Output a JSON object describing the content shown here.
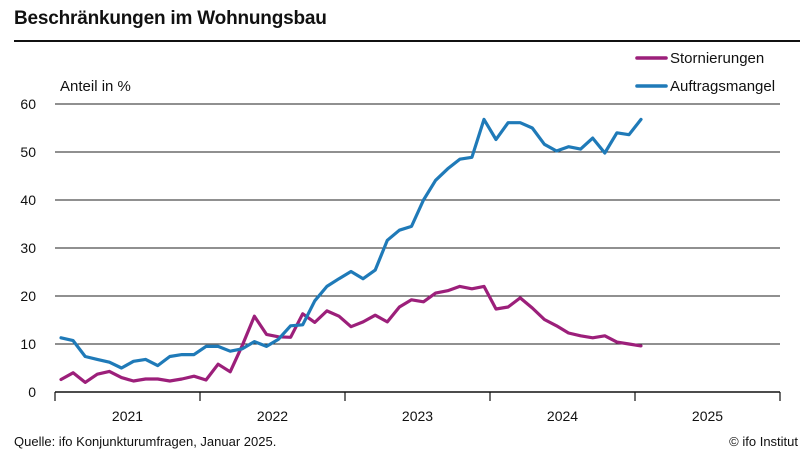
{
  "chart_data": {
    "type": "line",
    "title": "Beschränkungen im Wohnungsbau",
    "ylabel": "Anteil in %",
    "xlabel": "",
    "ylim": [
      0,
      60
    ],
    "yticks": [
      0,
      10,
      20,
      30,
      40,
      50,
      60
    ],
    "year_labels": [
      "2021",
      "2022",
      "2023",
      "2024",
      "2025"
    ],
    "x_start": "2021-01",
    "legend_position": "top-right",
    "grid": "horizontal",
    "series": [
      {
        "name": "Stornierungen",
        "color": "#9c1f7a",
        "values": [
          2.6,
          4.0,
          2.0,
          3.7,
          4.3,
          3.0,
          2.3,
          2.7,
          2.7,
          2.3,
          2.7,
          3.3,
          2.5,
          5.8,
          4.2,
          9.7,
          15.8,
          12.0,
          11.5,
          11.4,
          16.3,
          14.5,
          16.9,
          15.8,
          13.6,
          14.6,
          16.0,
          14.6,
          17.7,
          19.2,
          18.8,
          20.6,
          21.1,
          22.0,
          21.5,
          22.0,
          17.3,
          17.7,
          19.6,
          17.5,
          15.1,
          13.8,
          12.3,
          11.7,
          11.3,
          11.7,
          10.4,
          10.0,
          9.6
        ]
      },
      {
        "name": "Auftragsmangel",
        "color": "#1f7ab8",
        "values": [
          11.3,
          10.7,
          7.4,
          6.8,
          6.2,
          5.0,
          6.4,
          6.8,
          5.5,
          7.4,
          7.8,
          7.8,
          9.5,
          9.5,
          8.5,
          9.0,
          10.5,
          9.5,
          11.0,
          13.8,
          14.0,
          19.0,
          22.0,
          23.6,
          25.1,
          23.6,
          25.4,
          31.6,
          33.7,
          34.5,
          40.0,
          44.1,
          46.5,
          48.5,
          48.9,
          56.8,
          52.6,
          56.1,
          56.1,
          55.0,
          51.6,
          50.2,
          51.1,
          50.6,
          52.9,
          49.8,
          54.0,
          53.6,
          56.8
        ]
      }
    ]
  },
  "footer": {
    "source": "Quelle: ifo Konjunkturumfragen, Januar 2025.",
    "copyright": "© ifo Institut"
  }
}
